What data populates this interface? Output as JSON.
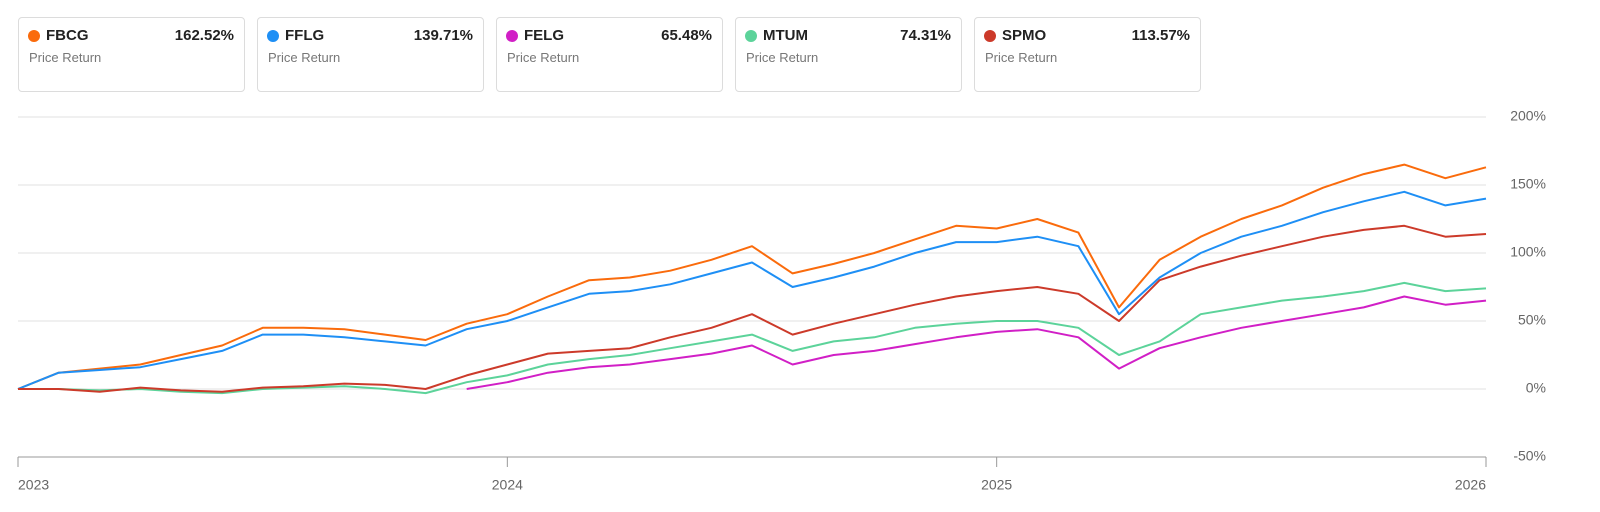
{
  "chart_data": {
    "type": "line",
    "x": [
      2023,
      2023.083,
      2023.167,
      2023.25,
      2023.333,
      2023.417,
      2023.5,
      2023.583,
      2023.667,
      2023.75,
      2023.833,
      2023.917,
      2024,
      2024.083,
      2024.167,
      2024.25,
      2024.333,
      2024.417,
      2024.5,
      2024.583,
      2024.667,
      2024.75,
      2024.833,
      2024.917,
      2025,
      2025.083,
      2025.167,
      2025.25,
      2025.333,
      2025.417,
      2025.5,
      2025.583,
      2025.667,
      2025.75,
      2025.833,
      2025.917,
      2026
    ],
    "series": [
      {
        "name": "FBCG",
        "total_return": "162.52%",
        "metric": "Price Return",
        "color": "#fa6b0c",
        "values": [
          0,
          12,
          15,
          18,
          25,
          32,
          45,
          45,
          44,
          40,
          36,
          48,
          55,
          68,
          80,
          82,
          87,
          95,
          105,
          85,
          92,
          100,
          110,
          120,
          118,
          125,
          115,
          60,
          95,
          112,
          125,
          135,
          148,
          158,
          165,
          155,
          163
        ]
      },
      {
        "name": "FFLG",
        "total_return": "139.71%",
        "metric": "Price Return",
        "color": "#1e8ff5",
        "values": [
          0,
          12,
          14,
          16,
          22,
          28,
          40,
          40,
          38,
          35,
          32,
          44,
          50,
          60,
          70,
          72,
          77,
          85,
          93,
          75,
          82,
          90,
          100,
          108,
          108,
          112,
          105,
          55,
          82,
          100,
          112,
          120,
          130,
          138,
          145,
          135,
          140
        ]
      },
      {
        "name": "FELG",
        "total_return": "65.48%",
        "metric": "Price Return",
        "color": "#d11fc6",
        "values": [
          null,
          null,
          null,
          null,
          null,
          null,
          null,
          null,
          null,
          null,
          null,
          0,
          5,
          12,
          16,
          18,
          22,
          26,
          32,
          18,
          25,
          28,
          33,
          38,
          42,
          44,
          38,
          15,
          30,
          38,
          45,
          50,
          55,
          60,
          68,
          62,
          65
        ]
      },
      {
        "name": "MTUM",
        "total_return": "74.31%",
        "metric": "Price Return",
        "color": "#5cd39a",
        "values": [
          0,
          0,
          -1,
          0,
          -2,
          -3,
          0,
          1,
          2,
          0,
          -3,
          5,
          10,
          18,
          22,
          25,
          30,
          35,
          40,
          28,
          35,
          38,
          45,
          48,
          50,
          50,
          45,
          25,
          35,
          55,
          60,
          65,
          68,
          72,
          78,
          72,
          74
        ]
      },
      {
        "name": "SPMO",
        "total_return": "113.57%",
        "metric": "Price Return",
        "color": "#cc3a2a",
        "values": [
          0,
          0,
          -2,
          1,
          -1,
          -2,
          1,
          2,
          4,
          3,
          0,
          10,
          18,
          26,
          28,
          30,
          38,
          45,
          55,
          40,
          48,
          55,
          62,
          68,
          72,
          75,
          70,
          50,
          80,
          90,
          98,
          105,
          112,
          117,
          120,
          112,
          114
        ]
      }
    ],
    "xlim": [
      2023,
      2026
    ],
    "xticks": [
      2023,
      2024,
      2025,
      2026
    ],
    "ylim": [
      -50,
      200
    ],
    "yticks": [
      {
        "value": -50,
        "label": "-50%"
      },
      {
        "value": 0,
        "label": "0%"
      },
      {
        "value": 50,
        "label": "50%"
      },
      {
        "value": 100,
        "label": "100%"
      },
      {
        "value": 150,
        "label": "150%"
      },
      {
        "value": 200,
        "label": "200%"
      }
    ],
    "grid": true
  }
}
